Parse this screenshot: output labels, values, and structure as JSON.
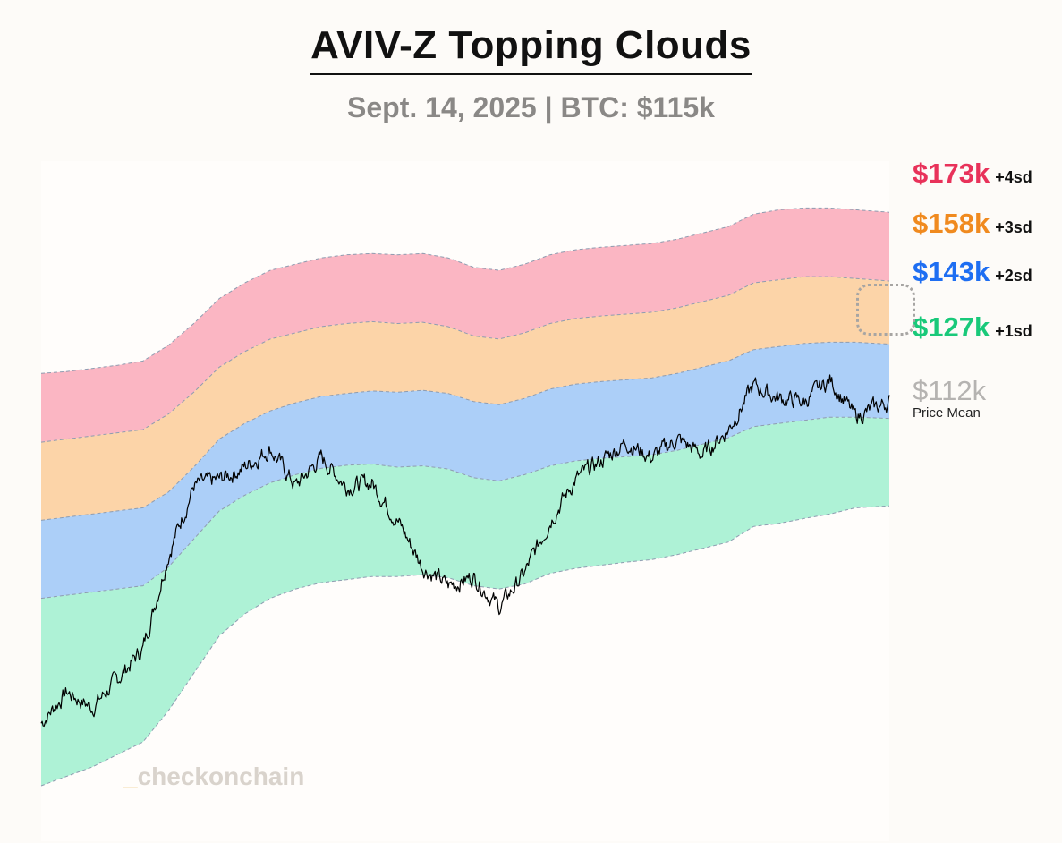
{
  "title": "AVIV-Z Topping Clouds",
  "subtitle": "Sept. 14, 2025 | BTC: $115k",
  "watermark": "checkonchain",
  "labels": [
    {
      "value": "$173k",
      "sd": "+4sd",
      "color": "#e8325a"
    },
    {
      "value": "$158k",
      "sd": "+3sd",
      "color": "#f08a1f"
    },
    {
      "value": "$143k",
      "sd": "+2sd",
      "color": "#1e6ef2"
    },
    {
      "value": "$127k",
      "sd": "+1sd",
      "color": "#19c97a"
    }
  ],
  "mean": {
    "value": "$112k",
    "label": "Price Mean"
  },
  "colors": {
    "band4": "#fbb6c3",
    "band3": "#fcd4a8",
    "band2": "#accff8",
    "band1": "#aef2d6",
    "price": "#000000",
    "edge": "#8e9cb0"
  },
  "chart_data": {
    "type": "area",
    "title": "AVIV-Z Topping Clouds",
    "subtitle": "Sept. 14, 2025 | BTC: $115k",
    "xlabel": "",
    "ylabel": "",
    "ylim": [
      0,
      100
    ],
    "x": [
      0,
      3,
      6,
      9,
      12,
      15,
      18,
      21,
      24,
      27,
      30,
      33,
      36,
      39,
      42,
      45,
      48,
      51,
      54,
      57,
      60,
      63,
      66,
      69,
      72,
      75,
      78,
      81,
      84,
      87,
      90,
      93,
      96,
      100
    ],
    "series": [
      {
        "name": "+4sd",
        "values": [
          66.0,
          66.3,
          66.8,
          67.3,
          68.0,
          70.5,
          74.0,
          78.0,
          80.5,
          82.5,
          83.5,
          84.5,
          85.0,
          85.2,
          85.0,
          85.2,
          84.5,
          83.0,
          82.5,
          83.5,
          85.0,
          85.8,
          86.2,
          86.5,
          86.8,
          87.5,
          88.5,
          89.5,
          91.5,
          92.2,
          92.5,
          92.5,
          92.2,
          91.8
        ]
      },
      {
        "name": "+3sd",
        "values": [
          55.0,
          55.5,
          56.0,
          56.5,
          57.0,
          59.5,
          63.0,
          67.0,
          69.5,
          71.5,
          72.5,
          73.5,
          74.0,
          74.3,
          74.0,
          74.2,
          73.5,
          72.0,
          71.5,
          72.5,
          74.0,
          74.8,
          75.2,
          75.5,
          75.8,
          76.5,
          77.5,
          78.5,
          80.5,
          81.0,
          81.5,
          81.5,
          81.2,
          80.8
        ]
      },
      {
        "name": "+2sd",
        "values": [
          42.5,
          43.0,
          43.5,
          44.0,
          44.5,
          47.0,
          51.0,
          55.5,
          58.0,
          60.0,
          61.3,
          62.3,
          62.8,
          63.2,
          63.0,
          63.3,
          62.8,
          61.5,
          61.0,
          62.0,
          63.5,
          64.3,
          64.7,
          65.0,
          65.3,
          66.0,
          67.0,
          68.0,
          69.8,
          70.3,
          70.8,
          71.0,
          71.0,
          70.7
        ]
      },
      {
        "name": "+1sd",
        "values": [
          30.0,
          30.5,
          31.0,
          31.5,
          32.0,
          35.0,
          39.5,
          44.0,
          46.5,
          48.5,
          49.8,
          50.8,
          51.3,
          51.5,
          51.0,
          51.2,
          50.7,
          49.3,
          48.8,
          49.8,
          51.2,
          52.0,
          52.4,
          52.7,
          53.0,
          53.7,
          54.7,
          55.7,
          57.5,
          58.0,
          58.5,
          59.0,
          59.0,
          58.8
        ]
      },
      {
        "name": "Price Mean",
        "values": [
          0.0,
          1.5,
          3.0,
          5.0,
          7.0,
          12.0,
          18.0,
          24.0,
          27.5,
          30.0,
          31.5,
          32.5,
          33.0,
          33.5,
          33.5,
          33.8,
          33.3,
          32.0,
          31.5,
          32.3,
          34.0,
          34.8,
          35.3,
          35.8,
          36.2,
          37.0,
          38.0,
          39.0,
          41.5,
          42.0,
          42.8,
          43.5,
          44.5,
          44.8
        ]
      },
      {
        "name": "BTC Price",
        "values": [
          10.0,
          15.0,
          12.5,
          17.0,
          22.0,
          37.0,
          48.0,
          49.0,
          51.0,
          54.0,
          48.0,
          52.5,
          48.0,
          48.5,
          42.5,
          35.0,
          32.0,
          33.5,
          28.5,
          34.0,
          42.5,
          49.0,
          52.0,
          55.0,
          52.5,
          55.5,
          53.0,
          57.0,
          64.0,
          62.0,
          61.5,
          65.0,
          59.0,
          61.5
        ]
      }
    ]
  }
}
